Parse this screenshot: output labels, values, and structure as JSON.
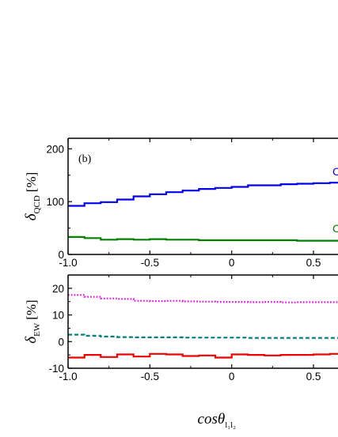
{
  "chart_data": [
    {
      "type": "line",
      "step": true,
      "panel_label": "(b)",
      "ylabel_main": "δ",
      "ylabel_sub": "QCD",
      "ylabel_unit": "[%]",
      "xlim": [
        -1.0,
        0.62
      ],
      "ylim": [
        0,
        220
      ],
      "xticks": [
        -1.0,
        -0.5,
        0,
        0.5
      ],
      "xtick_labels": [
        "-1.0",
        "-0.5",
        "0",
        "0.5"
      ],
      "yticks": [
        0,
        100,
        200
      ],
      "ytick_labels": [
        "0",
        "100",
        "200"
      ],
      "bin_width": 0.1,
      "bin_starts": [
        -1.0,
        -0.9,
        -0.8,
        -0.7,
        -0.6,
        -0.5,
        -0.4,
        -0.3,
        -0.2,
        -0.1,
        0.0,
        0.1,
        0.2,
        0.3,
        0.4,
        0.5,
        0.6
      ],
      "series": [
        {
          "color": "#0000ee",
          "dash": "solid",
          "edge_text": "C",
          "values": [
            92,
            97,
            99,
            104,
            110,
            114,
            118,
            121,
            124,
            126,
            128,
            131,
            131,
            133,
            134,
            135,
            136
          ]
        },
        {
          "color": "#008000",
          "dash": "solid",
          "edge_text": "C",
          "values": [
            33,
            31,
            28,
            29,
            28,
            29,
            28,
            28,
            27,
            27,
            27,
            27,
            27,
            27,
            26,
            26,
            26
          ]
        }
      ]
    },
    {
      "type": "line",
      "step": true,
      "ylabel_main": "δ",
      "ylabel_sub": "EW",
      "ylabel_unit": "[%]",
      "xlabel_main": "cosθ",
      "xlabel_sub": "l₁l₂",
      "xlim": [
        -1.0,
        0.62
      ],
      "ylim": [
        -10,
        25
      ],
      "xticks": [
        -1.0,
        -0.5,
        0,
        0.5
      ],
      "xtick_labels": [
        "-1.0",
        "-0.5",
        "0",
        "0.5"
      ],
      "yticks": [
        -10,
        0,
        10,
        20
      ],
      "ytick_labels": [
        "-10",
        "0",
        "10",
        "20"
      ],
      "bin_width": 0.1,
      "bin_starts": [
        -1.0,
        -0.9,
        -0.8,
        -0.7,
        -0.6,
        -0.5,
        -0.4,
        -0.3,
        -0.2,
        -0.1,
        0.0,
        0.1,
        0.2,
        0.3,
        0.4,
        0.5,
        0.6
      ],
      "series": [
        {
          "color": "#ee00ee",
          "dash": "dotted",
          "values": [
            17.5,
            16.8,
            16.2,
            16.0,
            15.3,
            15.2,
            15.3,
            15.1,
            15.0,
            14.9,
            14.9,
            14.8,
            14.9,
            14.7,
            14.8,
            14.8,
            14.8
          ]
        },
        {
          "color": "#008080",
          "dash": "dashed",
          "values": [
            2.6,
            2.2,
            1.9,
            1.7,
            1.6,
            1.6,
            1.6,
            1.5,
            1.5,
            1.5,
            1.5,
            1.4,
            1.4,
            1.4,
            1.4,
            1.4,
            1.4
          ]
        },
        {
          "color": "#ee0000",
          "dash": "solid",
          "values": [
            -6.0,
            -5.0,
            -5.8,
            -4.8,
            -5.6,
            -4.6,
            -4.8,
            -5.4,
            -5.2,
            -6.0,
            -4.8,
            -5.0,
            -5.2,
            -5.0,
            -5.0,
            -4.8,
            -4.6
          ]
        }
      ]
    }
  ]
}
